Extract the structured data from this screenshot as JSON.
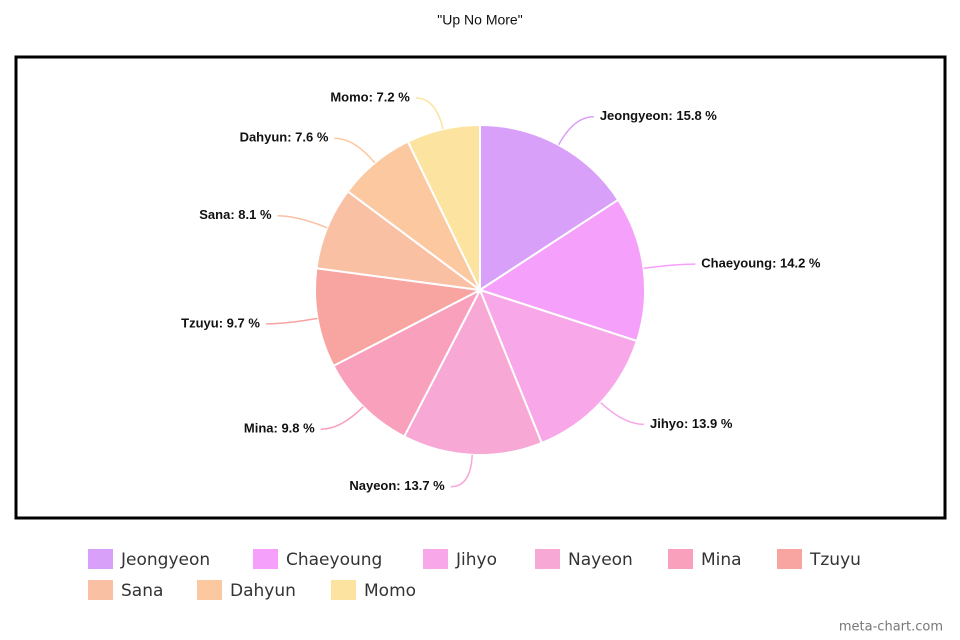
{
  "chart_data": {
    "type": "pie",
    "title": "\"Up No More\"",
    "categories": [
      "Jeongyeon",
      "Chaeyoung",
      "Jihyo",
      "Nayeon",
      "Mina",
      "Tzuyu",
      "Sana",
      "Dahyun",
      "Momo"
    ],
    "values": [
      15.8,
      14.2,
      13.9,
      13.7,
      9.8,
      9.7,
      8.1,
      7.6,
      7.2
    ],
    "value_labels": [
      "Jeongyeon: 15.8 %",
      "Chaeyoung: 14.2 %",
      "Jihyo: 13.9 %",
      "Nayeon: 13.7 %",
      "Mina: 9.8 %",
      "Tzuyu: 9.7 %",
      "Sana: 8.1 %",
      "Dahyun: 7.6 %",
      "Momo: 7.2 %"
    ],
    "colors": [
      "#d9a0fa",
      "#f5a0fa",
      "#f8a8e8",
      "#f8a8d4",
      "#f8a0bc",
      "#f8a4a0",
      "#fac0a4",
      "#fcc8a0",
      "#fce4a0"
    ],
    "watermark": "meta-chart.com"
  }
}
